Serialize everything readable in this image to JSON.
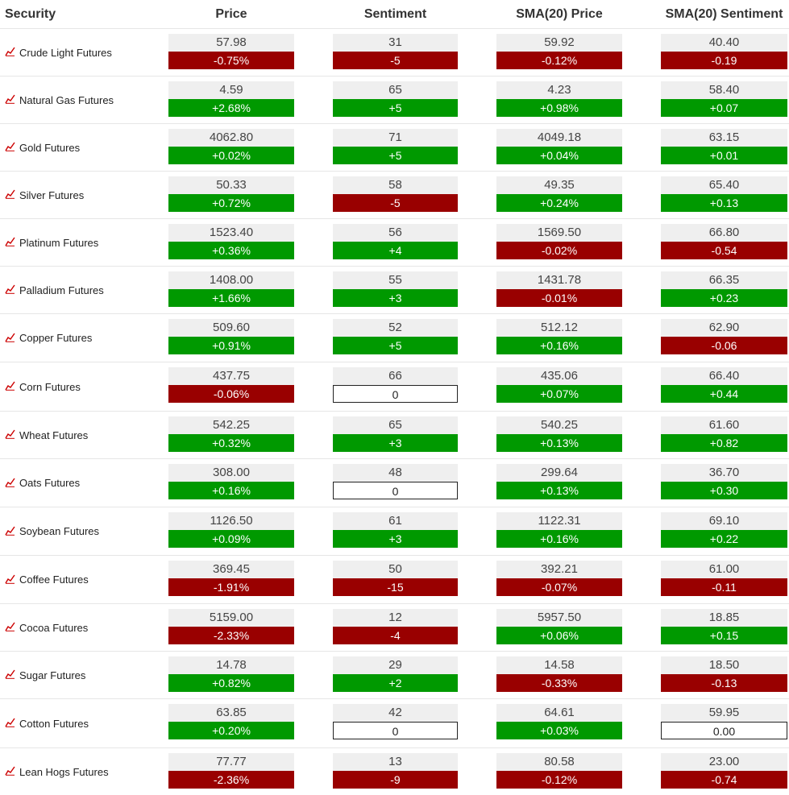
{
  "headers": {
    "security": "Security",
    "price": "Price",
    "sentiment": "Sentiment",
    "sma_price": "SMA(20) Price",
    "sma_sentiment": "SMA(20) Sentiment"
  },
  "colors": {
    "positive": "#009900",
    "negative": "#990000",
    "neutral_border": "#222222",
    "value_bg": "#efefef",
    "icon": "#cc0000"
  },
  "icons": {
    "row_icon": "trend-chart-icon"
  },
  "rows": [
    {
      "name": "Crude Light Futures",
      "price": "57.98",
      "price_chg": "-0.75%",
      "sent": "31",
      "sent_chg": "-5",
      "sma_price": "59.92",
      "sma_price_chg": "-0.12%",
      "sma_sent": "40.40",
      "sma_sent_chg": "-0.19"
    },
    {
      "name": "Natural Gas Futures",
      "price": "4.59",
      "price_chg": "+2.68%",
      "sent": "65",
      "sent_chg": "+5",
      "sma_price": "4.23",
      "sma_price_chg": "+0.98%",
      "sma_sent": "58.40",
      "sma_sent_chg": "+0.07"
    },
    {
      "name": "Gold Futures",
      "price": "4062.80",
      "price_chg": "+0.02%",
      "sent": "71",
      "sent_chg": "+5",
      "sma_price": "4049.18",
      "sma_price_chg": "+0.04%",
      "sma_sent": "63.15",
      "sma_sent_chg": "+0.01"
    },
    {
      "name": "Silver Futures",
      "price": "50.33",
      "price_chg": "+0.72%",
      "sent": "58",
      "sent_chg": "-5",
      "sma_price": "49.35",
      "sma_price_chg": "+0.24%",
      "sma_sent": "65.40",
      "sma_sent_chg": "+0.13"
    },
    {
      "name": "Platinum Futures",
      "price": "1523.40",
      "price_chg": "+0.36%",
      "sent": "56",
      "sent_chg": "+4",
      "sma_price": "1569.50",
      "sma_price_chg": "-0.02%",
      "sma_sent": "66.80",
      "sma_sent_chg": "-0.54"
    },
    {
      "name": "Palladium Futures",
      "price": "1408.00",
      "price_chg": "+1.66%",
      "sent": "55",
      "sent_chg": "+3",
      "sma_price": "1431.78",
      "sma_price_chg": "-0.01%",
      "sma_sent": "66.35",
      "sma_sent_chg": "+0.23"
    },
    {
      "name": "Copper Futures",
      "price": "509.60",
      "price_chg": "+0.91%",
      "sent": "52",
      "sent_chg": "+5",
      "sma_price": "512.12",
      "sma_price_chg": "+0.16%",
      "sma_sent": "62.90",
      "sma_sent_chg": "-0.06"
    },
    {
      "name": "Corn Futures",
      "price": "437.75",
      "price_chg": "-0.06%",
      "sent": "66",
      "sent_chg": "0",
      "sma_price": "435.06",
      "sma_price_chg": "+0.07%",
      "sma_sent": "66.40",
      "sma_sent_chg": "+0.44"
    },
    {
      "name": "Wheat Futures",
      "price": "542.25",
      "price_chg": "+0.32%",
      "sent": "65",
      "sent_chg": "+3",
      "sma_price": "540.25",
      "sma_price_chg": "+0.13%",
      "sma_sent": "61.60",
      "sma_sent_chg": "+0.82"
    },
    {
      "name": "Oats Futures",
      "price": "308.00",
      "price_chg": "+0.16%",
      "sent": "48",
      "sent_chg": "0",
      "sma_price": "299.64",
      "sma_price_chg": "+0.13%",
      "sma_sent": "36.70",
      "sma_sent_chg": "+0.30"
    },
    {
      "name": "Soybean Futures",
      "price": "1126.50",
      "price_chg": "+0.09%",
      "sent": "61",
      "sent_chg": "+3",
      "sma_price": "1122.31",
      "sma_price_chg": "+0.16%",
      "sma_sent": "69.10",
      "sma_sent_chg": "+0.22"
    },
    {
      "name": "Coffee Futures",
      "price": "369.45",
      "price_chg": "-1.91%",
      "sent": "50",
      "sent_chg": "-15",
      "sma_price": "392.21",
      "sma_price_chg": "-0.07%",
      "sma_sent": "61.00",
      "sma_sent_chg": "-0.11"
    },
    {
      "name": "Cocoa Futures",
      "price": "5159.00",
      "price_chg": "-2.33%",
      "sent": "12",
      "sent_chg": "-4",
      "sma_price": "5957.50",
      "sma_price_chg": "+0.06%",
      "sma_sent": "18.85",
      "sma_sent_chg": "+0.15"
    },
    {
      "name": "Sugar Futures",
      "price": "14.78",
      "price_chg": "+0.82%",
      "sent": "29",
      "sent_chg": "+2",
      "sma_price": "14.58",
      "sma_price_chg": "-0.33%",
      "sma_sent": "18.50",
      "sma_sent_chg": "-0.13"
    },
    {
      "name": "Cotton Futures",
      "price": "63.85",
      "price_chg": "+0.20%",
      "sent": "42",
      "sent_chg": "0",
      "sma_price": "64.61",
      "sma_price_chg": "+0.03%",
      "sma_sent": "59.95",
      "sma_sent_chg": "0.00"
    },
    {
      "name": "Lean Hogs Futures",
      "price": "77.77",
      "price_chg": "-2.36%",
      "sent": "13",
      "sent_chg": "-9",
      "sma_price": "80.58",
      "sma_price_chg": "-0.12%",
      "sma_sent": "23.00",
      "sma_sent_chg": "-0.74"
    }
  ]
}
